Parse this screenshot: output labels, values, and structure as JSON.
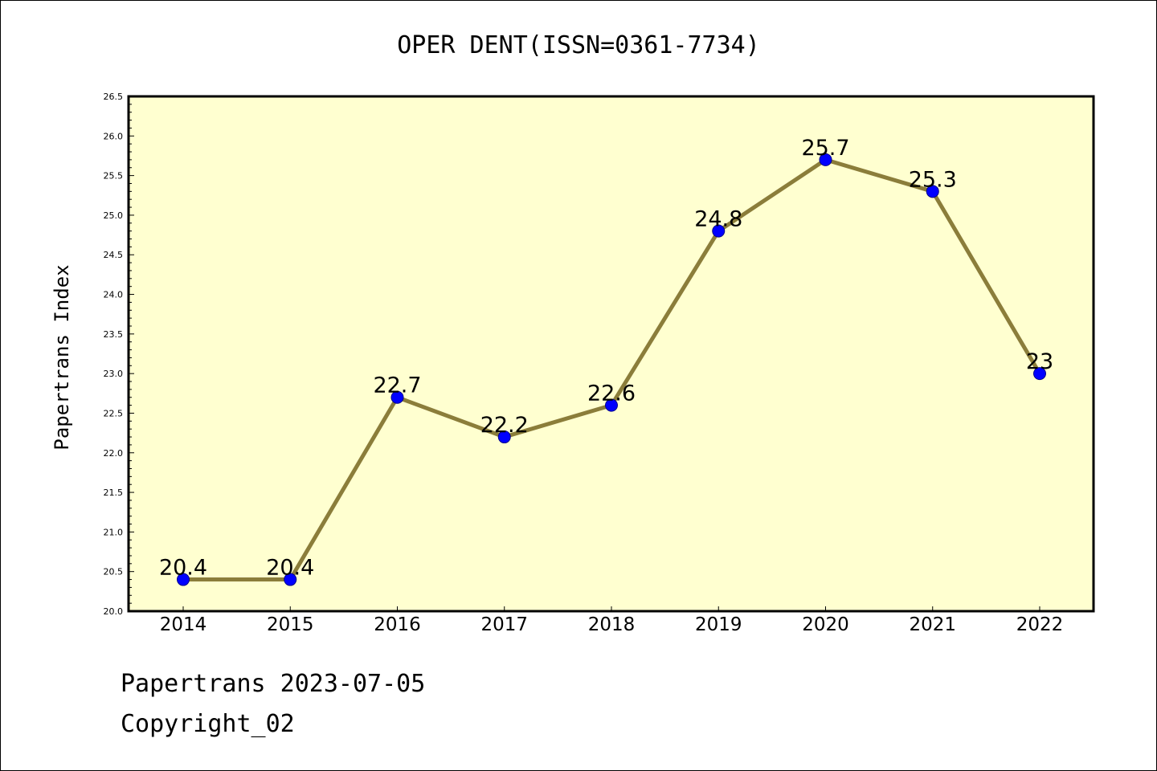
{
  "chart_data": {
    "type": "line",
    "title": "OPER DENT(ISSN=0361-7734)",
    "xlabel": "",
    "ylabel": "Papertrans Index",
    "categories": [
      "2014",
      "2015",
      "2016",
      "2017",
      "2018",
      "2019",
      "2020",
      "2021",
      "2022"
    ],
    "values": [
      20.4,
      20.4,
      22.7,
      22.2,
      22.6,
      24.8,
      25.7,
      25.3,
      23
    ],
    "data_labels": [
      "20.4",
      "20.4",
      "22.7",
      "22.2",
      "22.6",
      "24.8",
      "25.7",
      "25.3",
      "23"
    ],
    "ylim": [
      20.0,
      26.5
    ],
    "yticks": [
      "20.0",
      "20.5",
      "21.0",
      "21.5",
      "22.0",
      "22.5",
      "23.0",
      "23.5",
      "24.0",
      "24.5",
      "25.0",
      "25.5",
      "26.0",
      "26.5"
    ],
    "grid": false,
    "colors": {
      "plot_bg": "#ffffd0",
      "line": "#8b7d3a",
      "marker": "#0000ff"
    }
  },
  "footer": {
    "line1": "Papertrans 2023-07-05",
    "line2": "Copyright_02"
  }
}
